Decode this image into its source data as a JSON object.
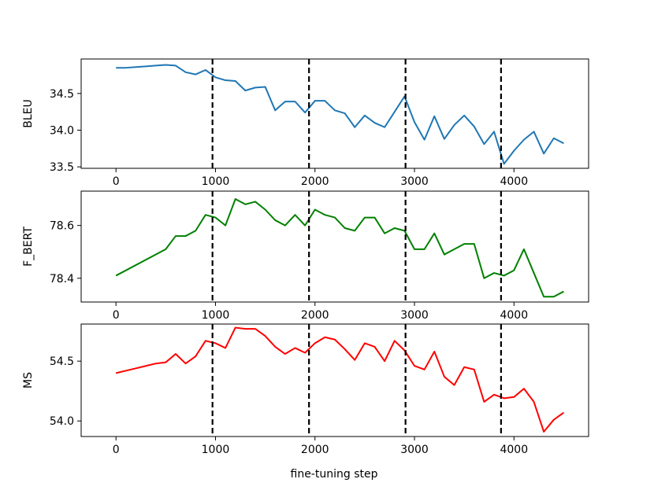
{
  "chart_data": [
    {
      "type": "line",
      "ylabel": "BLEU",
      "xlabel": "",
      "xlim": [
        -350,
        4750
      ],
      "ylim": [
        33.48,
        34.97
      ],
      "xticks": [
        0,
        1000,
        2000,
        3000,
        4000
      ],
      "yticks": [
        33.5,
        34.0,
        34.5
      ],
      "ytick_labels": [
        "33.5",
        "34.0",
        "34.5"
      ],
      "grid": false,
      "color": "#1f77b4",
      "vlines": [
        970,
        1940,
        2910,
        3870
      ],
      "vline_color": "#000000",
      "series": [
        {
          "x": [
            0,
            100,
            200,
            300,
            400,
            500,
            600,
            700,
            800,
            900,
            1000,
            1100,
            1200,
            1300,
            1400,
            1500,
            1600,
            1700,
            1800,
            1900,
            2000,
            2100,
            2200,
            2300,
            2400,
            2500,
            2600,
            2700,
            2800,
            2900,
            3000,
            3100,
            3200,
            3300,
            3400,
            3500,
            3600,
            3700,
            3800,
            3900,
            4000,
            4100,
            4200,
            4300,
            4400,
            4500
          ],
          "y": [
            34.85,
            34.85,
            34.86,
            34.87,
            34.88,
            34.89,
            34.88,
            34.79,
            34.76,
            34.82,
            34.72,
            34.68,
            34.67,
            34.54,
            34.58,
            34.59,
            34.27,
            34.39,
            34.39,
            34.24,
            34.4,
            34.4,
            34.27,
            34.23,
            34.04,
            34.2,
            34.1,
            34.04,
            34.25,
            34.46,
            34.11,
            33.87,
            34.19,
            33.88,
            34.07,
            34.2,
            34.05,
            33.81,
            33.98,
            33.54,
            33.72,
            33.87,
            33.98,
            33.68,
            33.89,
            33.82
          ]
        }
      ]
    },
    {
      "type": "line",
      "ylabel": "F_BERT",
      "xlabel": "",
      "xlim": [
        -350,
        4750
      ],
      "ylim": [
        78.31,
        78.73
      ],
      "xticks": [
        0,
        1000,
        2000,
        3000,
        4000
      ],
      "yticks": [
        78.4,
        78.6
      ],
      "ytick_labels": [
        "78.4",
        "78.6"
      ],
      "grid": false,
      "color": "#008000",
      "vlines": [
        970,
        1940,
        2910,
        3870
      ],
      "vline_color": "#000000",
      "series": [
        {
          "x": [
            0,
            500,
            600,
            700,
            800,
            900,
            1000,
            1100,
            1200,
            1300,
            1400,
            1500,
            1600,
            1700,
            1800,
            1900,
            2000,
            2100,
            2200,
            2300,
            2400,
            2500,
            2600,
            2700,
            2800,
            2900,
            3000,
            3100,
            3200,
            3300,
            3400,
            3500,
            3600,
            3700,
            3800,
            3900,
            4000,
            4100,
            4200,
            4300,
            4400,
            4500
          ],
          "y": [
            78.41,
            78.51,
            78.56,
            78.56,
            78.58,
            78.64,
            78.63,
            78.6,
            78.7,
            78.68,
            78.69,
            78.66,
            78.62,
            78.6,
            78.64,
            78.6,
            78.66,
            78.64,
            78.63,
            78.59,
            78.58,
            78.63,
            78.63,
            78.57,
            78.59,
            78.58,
            78.51,
            78.51,
            78.57,
            78.49,
            78.51,
            78.53,
            78.53,
            78.4,
            78.42,
            78.41,
            78.43,
            78.51,
            78.42,
            78.33,
            78.33,
            78.35
          ]
        }
      ]
    },
    {
      "type": "line",
      "ylabel": "MS",
      "xlabel": "fine-tuning step",
      "xlim": [
        -350,
        4750
      ],
      "ylim": [
        53.87,
        54.81
      ],
      "xticks": [
        0,
        1000,
        2000,
        3000,
        4000
      ],
      "yticks": [
        54.0,
        54.5
      ],
      "ytick_labels": [
        "54.0",
        "54.5"
      ],
      "grid": false,
      "color": "#ff0000",
      "vlines": [
        970,
        1940,
        2910,
        3870
      ],
      "vline_color": "#000000",
      "series": [
        {
          "x": [
            0,
            100,
            200,
            300,
            400,
            500,
            600,
            700,
            800,
            900,
            1000,
            1100,
            1200,
            1300,
            1400,
            1500,
            1600,
            1700,
            1800,
            1900,
            2000,
            2100,
            2200,
            2300,
            2400,
            2500,
            2600,
            2700,
            2800,
            2900,
            3000,
            3100,
            3200,
            3300,
            3400,
            3500,
            3600,
            3700,
            3800,
            3900,
            4000,
            4100,
            4200,
            4300,
            4400,
            4500
          ],
          "y": [
            54.4,
            54.42,
            54.44,
            54.46,
            54.48,
            54.49,
            54.56,
            54.48,
            54.54,
            54.67,
            54.65,
            54.61,
            54.78,
            54.77,
            54.77,
            54.71,
            54.62,
            54.56,
            54.61,
            54.57,
            54.65,
            54.7,
            54.68,
            54.6,
            54.51,
            54.65,
            54.62,
            54.5,
            54.67,
            54.59,
            54.46,
            54.43,
            54.58,
            54.37,
            54.3,
            54.45,
            54.43,
            54.16,
            54.22,
            54.19,
            54.2,
            54.27,
            54.16,
            53.91,
            54.01,
            54.07
          ]
        }
      ]
    }
  ]
}
